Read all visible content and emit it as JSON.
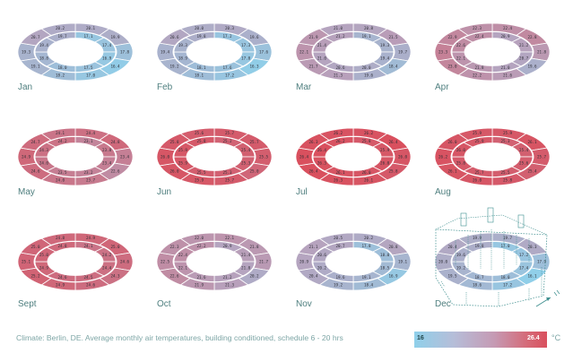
{
  "scale": {
    "min_label": "16",
    "max_label": "26.4",
    "unit": "°C",
    "min_value": 16,
    "max_value": 26.4,
    "cold_color": "#8fd0ea",
    "mid_color": "#b7a2bd",
    "hot_color": "#d9505e"
  },
  "caption": "Climate: Berlin, DE. Average monthly air temperatures, building conditioned, schedule 6 - 20 hrs",
  "months": [
    {
      "label": "Jan",
      "outer": [
        20.1,
        19.9,
        17.8,
        16.4,
        17.0,
        18.2,
        19.1,
        19.3,
        20.7,
        20.2
      ],
      "inner": [
        17.1,
        17.4,
        16.9,
        17.5,
        18.0,
        18.8,
        19.4,
        19.7
      ]
    },
    {
      "label": "Feb",
      "outer": [
        20.3,
        19.6,
        17.6,
        16.3,
        17.2,
        18.1,
        19.2,
        19.4,
        20.6,
        20.0
      ],
      "inner": [
        17.2,
        17.3,
        17.0,
        17.6,
        18.1,
        18.9,
        19.3,
        19.8
      ]
    },
    {
      "label": "Mar",
      "outer": [
        20.8,
        21.5,
        19.7,
        18.4,
        19.6,
        21.3,
        21.7,
        22.1,
        21.9,
        21.0
      ],
      "inner": [
        19.1,
        19.3,
        19.4,
        20.0,
        20.6,
        21.0,
        21.4,
        21.2
      ]
    },
    {
      "label": "Apr",
      "outer": [
        22.4,
        22.8,
        21.8,
        19.6,
        21.6,
        22.2,
        23.0,
        23.3,
        22.9,
        22.3
      ],
      "inner": [
        20.9,
        21.2,
        20.7,
        21.0,
        21.8,
        22.1,
        22.6,
        22.4
      ]
    },
    {
      "label": "May",
      "outer": [
        24.4,
        24.8,
        23.4,
        22.6,
        23.7,
        24.0,
        24.6,
        24.9,
        24.7,
        24.1
      ],
      "inner": [
        23.1,
        23.8,
        23.4,
        23.2,
        23.5,
        24.0,
        24.3,
        24.2
      ]
    },
    {
      "label": "Jun",
      "outer": [
        25.7,
        25.7,
        25.5,
        25.0,
        25.7,
        25.9,
        26.0,
        26.0,
        25.8,
        25.6
      ],
      "inner": [
        25.2,
        25.4,
        25.3,
        25.3,
        25.5,
        25.9,
        25.9,
        25.8
      ]
    },
    {
      "label": "Jul",
      "outer": [
        26.2,
        26.4,
        26.0,
        25.8,
        26.1,
        26.3,
        26.4,
        26.4,
        26.3,
        26.2
      ],
      "inner": [
        25.8,
        25.9,
        26.0,
        26.0,
        26.1,
        26.3,
        26.4,
        26.2
      ]
    },
    {
      "label": "Aug",
      "outer": [
        25.9,
        26.1,
        25.7,
        25.4,
        25.8,
        26.0,
        26.1,
        26.2,
        26.0,
        25.9
      ],
      "inner": [
        25.3,
        25.4,
        25.6,
        25.5,
        25.7,
        25.8,
        26.0,
        25.9
      ]
    },
    {
      "label": "Sept",
      "outer": [
        24.9,
        25.0,
        24.6,
        24.3,
        24.6,
        24.9,
        25.2,
        25.1,
        25.0,
        24.8
      ],
      "inner": [
        24.1,
        24.2,
        24.4,
        24.5,
        24.6,
        24.9,
        25.0,
        24.8
      ]
    },
    {
      "label": "Oct",
      "outer": [
        22.1,
        21.8,
        21.7,
        20.2,
        21.3,
        21.9,
        22.6,
        22.5,
        22.3,
        22.0
      ],
      "inner": [
        20.9,
        21.4,
        21.0,
        21.2,
        21.6,
        22.1,
        22.4,
        22.2
      ]
    },
    {
      "label": "Nov",
      "outer": [
        20.2,
        20.8,
        19.1,
        16.9,
        18.4,
        19.2,
        20.4,
        20.9,
        21.1,
        20.5
      ],
      "inner": [
        17.8,
        18.0,
        18.5,
        19.1,
        19.6,
        20.2,
        20.6,
        20.7
      ]
    },
    {
      "label": "Dec",
      "outer": [
        19.7,
        20.3,
        17.9,
        16.1,
        17.2,
        18.6,
        19.5,
        20.0,
        20.4,
        19.9
      ],
      "inner": [
        17.0,
        17.2,
        17.4,
        18.0,
        18.7,
        19.2,
        19.6,
        19.8
      ]
    }
  ]
}
